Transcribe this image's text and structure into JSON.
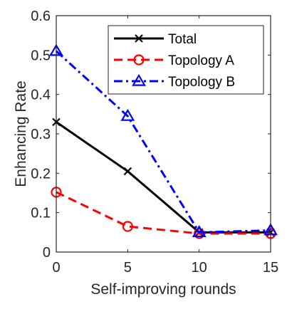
{
  "chart_data": {
    "type": "line",
    "xlabel": "Self-improving rounds",
    "ylabel": "Enhancing Rate",
    "x": [
      0,
      5,
      10,
      15
    ],
    "xlim": [
      0,
      15
    ],
    "ylim": [
      0,
      0.6
    ],
    "xticks": [
      "0",
      "5",
      "10",
      "15"
    ],
    "yticks": [
      "0",
      "0.1",
      "0.2",
      "0.3",
      "0.4",
      "0.5",
      "0.6"
    ],
    "grid": false,
    "legend_position": "top-right",
    "series": [
      {
        "name": "Total",
        "values": [
          0.33,
          0.205,
          0.05,
          0.05
        ],
        "color": "#000000",
        "line": "solid",
        "marker": "x"
      },
      {
        "name": "Topology A",
        "values": [
          0.152,
          0.065,
          0.047,
          0.047
        ],
        "color": "#ff0000",
        "line": "dashed",
        "marker": "circle"
      },
      {
        "name": "Topology B",
        "values": [
          0.51,
          0.345,
          0.05,
          0.055
        ],
        "color": "#0000ff",
        "line": "dashdot",
        "marker": "triangle"
      }
    ]
  }
}
